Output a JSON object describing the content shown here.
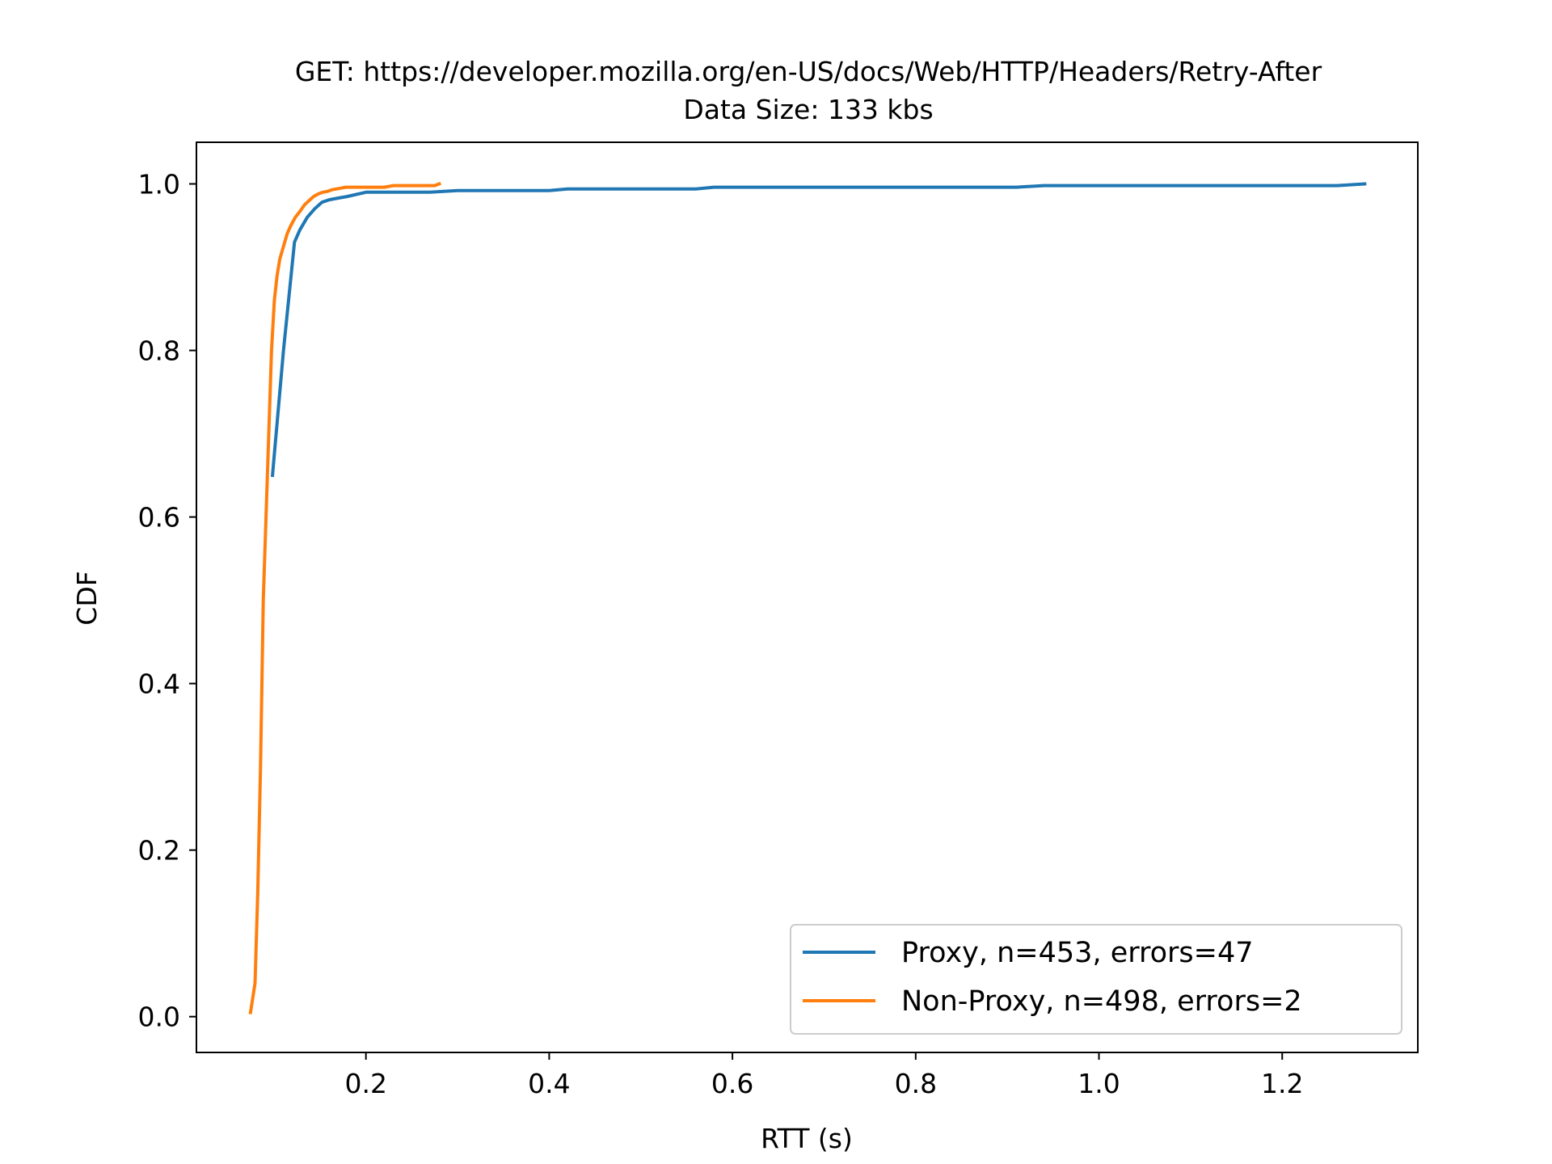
{
  "chart_data": {
    "type": "line",
    "title": "GET: https://developer.mozilla.org/en-US/docs/Web/HTTP/Headers/Retry-After",
    "subtitle": "Data Size: 133 kbs",
    "xlabel": "RTT (s)",
    "ylabel": "CDF",
    "xlim": [
      0.015,
      1.348
    ],
    "ylim": [
      -0.043,
      1.05
    ],
    "xticks": [
      0.2,
      0.4,
      0.6,
      0.8,
      1.0,
      1.2
    ],
    "xtick_labels": [
      "0.2",
      "0.4",
      "0.6",
      "0.8",
      "1.0",
      "1.2"
    ],
    "yticks": [
      0.0,
      0.2,
      0.4,
      0.6,
      0.8,
      1.0
    ],
    "ytick_labels": [
      "0.0",
      "0.2",
      "0.4",
      "0.6",
      "0.8",
      "1.0"
    ],
    "grid": false,
    "legend_position": "lower-right",
    "series": [
      {
        "name": "Proxy, n=453, errors=47",
        "color": "#1f77b4",
        "x": [
          0.098,
          0.11,
          0.122,
          0.128,
          0.136,
          0.144,
          0.152,
          0.16,
          0.17,
          0.18,
          0.2,
          0.22,
          0.25,
          0.27,
          0.3,
          0.32,
          0.4,
          0.42,
          0.5,
          0.56,
          0.58,
          0.7,
          0.9,
          0.91,
          0.94,
          1.0,
          1.1,
          1.2,
          1.26,
          1.29
        ],
        "y": [
          0.65,
          0.8,
          0.93,
          0.945,
          0.96,
          0.97,
          0.978,
          0.981,
          0.983,
          0.985,
          0.99,
          0.99,
          0.99,
          0.99,
          0.992,
          0.992,
          0.992,
          0.994,
          0.994,
          0.994,
          0.996,
          0.996,
          0.996,
          0.996,
          0.998,
          0.998,
          0.998,
          0.998,
          0.998,
          1.0
        ]
      },
      {
        "name": "Non-Proxy, n=498, errors=2",
        "color": "#ff7f0e",
        "x": [
          0.074,
          0.079,
          0.082,
          0.085,
          0.088,
          0.091,
          0.094,
          0.097,
          0.1,
          0.103,
          0.106,
          0.11,
          0.114,
          0.118,
          0.123,
          0.128,
          0.133,
          0.138,
          0.143,
          0.148,
          0.153,
          0.158,
          0.163,
          0.168,
          0.173,
          0.178,
          0.183,
          0.19,
          0.2,
          0.21,
          0.22,
          0.23,
          0.235,
          0.24,
          0.25,
          0.26,
          0.27,
          0.275,
          0.28
        ],
        "y": [
          0.005,
          0.04,
          0.15,
          0.3,
          0.5,
          0.6,
          0.7,
          0.8,
          0.86,
          0.89,
          0.91,
          0.925,
          0.94,
          0.95,
          0.96,
          0.967,
          0.975,
          0.98,
          0.985,
          0.988,
          0.99,
          0.991,
          0.993,
          0.994,
          0.995,
          0.996,
          0.996,
          0.996,
          0.996,
          0.996,
          0.996,
          0.998,
          0.998,
          0.998,
          0.998,
          0.998,
          0.998,
          0.998,
          1.0
        ]
      }
    ]
  }
}
